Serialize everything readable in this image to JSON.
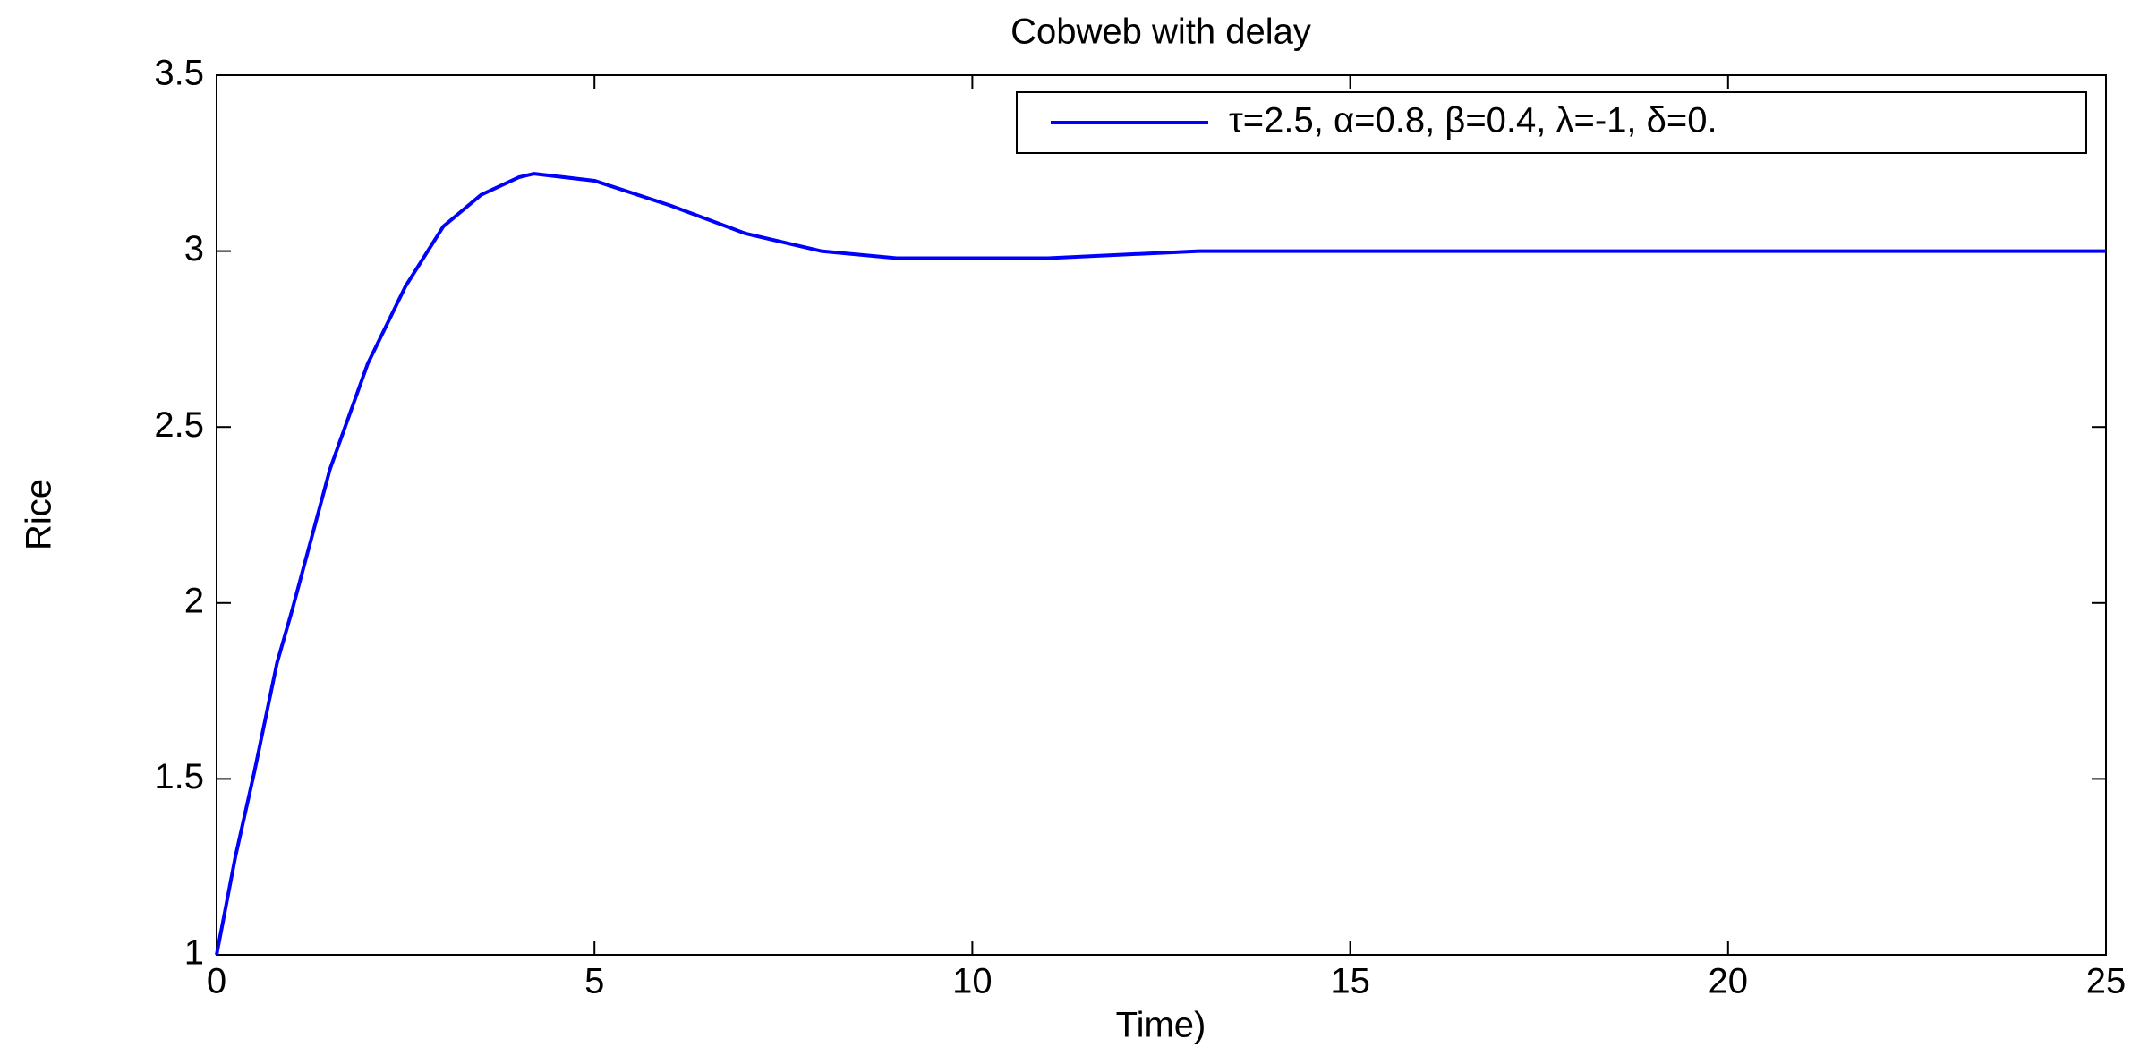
{
  "chart_data": {
    "type": "line",
    "title": "Cobweb with delay",
    "x_label": "Time)",
    "y_label": "Rice",
    "x": [
      0,
      0.25,
      0.5,
      0.8,
      1,
      1.5,
      2,
      2.5,
      3,
      3.5,
      4,
      4.2,
      5,
      6,
      7,
      8,
      9,
      10,
      11,
      12,
      13,
      14,
      15,
      20,
      25
    ],
    "series": [
      {
        "name": "τ=2.5, α=0.8, β=0.4, λ=-1, δ=0.",
        "color": "#0000ff",
        "values": [
          1.0,
          1.28,
          1.52,
          1.83,
          1.98,
          2.38,
          2.68,
          2.9,
          3.07,
          3.16,
          3.21,
          3.22,
          3.2,
          3.13,
          3.05,
          3.0,
          2.98,
          2.98,
          2.98,
          2.99,
          3.0,
          3.0,
          3.0,
          3.0,
          3.0
        ]
      }
    ],
    "xlim": [
      0,
      25
    ],
    "xticks": [
      0,
      5,
      10,
      15,
      20,
      25
    ],
    "ylim": [
      1,
      3.5
    ],
    "yticks": [
      1,
      1.5,
      2,
      2.5,
      3,
      3.5
    ],
    "grid": false,
    "legend": "upper right"
  }
}
